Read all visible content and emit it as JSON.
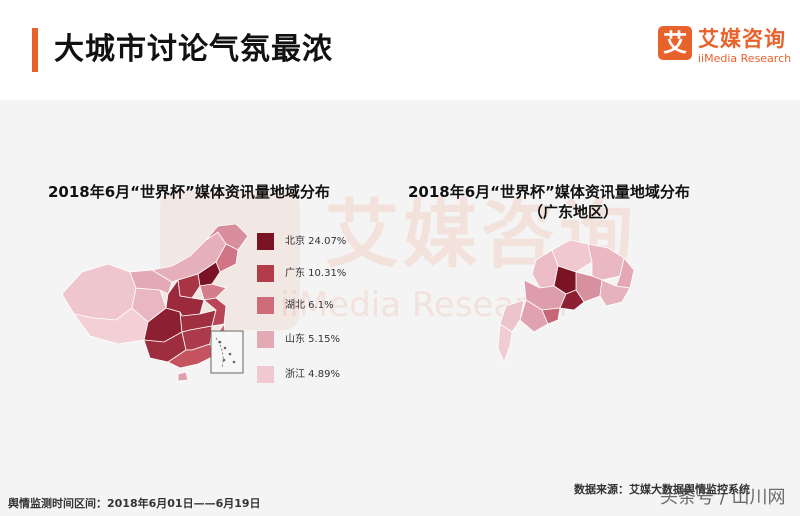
{
  "header": {
    "title": "大城市讨论气氛最浓",
    "accent_color": "#e8622c"
  },
  "logo": {
    "mark": "艾",
    "name": "艾媒咨询",
    "subtitle": "iiMedia Research",
    "color": "#e8622c"
  },
  "watermark": {
    "text": "艾媒咨询",
    "subtext": "iiMedia Research"
  },
  "china_map": {
    "title": "2018年6月“世界杯”媒体资讯量地域分布",
    "legend": [
      {
        "label": "北京  24.07%",
        "color": "#7a1424"
      },
      {
        "label": "广东  10.31%",
        "color": "#b23c4a"
      },
      {
        "label": "湖北  6.1%",
        "color": "#cf6c7a"
      },
      {
        "label": "山东  5.15%",
        "color": "#e3aab4"
      },
      {
        "label": "浙江  4.89%",
        "color": "#efc8d0"
      }
    ]
  },
  "guangdong_map": {
    "title": "2018年6月“世界杯”媒体资讯量地域分布",
    "subtitle": "（广东地区）"
  },
  "footer": {
    "period": "舆情监测时间区间：2018年6月01日——6月19日",
    "source": "数据来源：艾媒大数据舆情监控系统",
    "overlay": "头条号 / 山川网"
  }
}
